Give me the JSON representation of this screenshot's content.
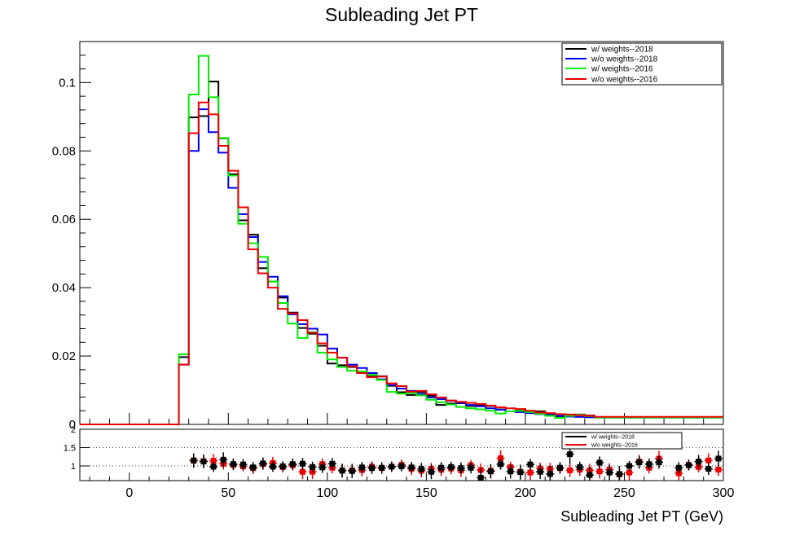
{
  "chart_data": [
    {
      "type": "line",
      "title": "Subleading Jet PT",
      "xlabel": "Subleading Jet PT (GeV)",
      "ylabel": "",
      "xlim": [
        -25,
        300
      ],
      "ylim": [
        0,
        0.112
      ],
      "yticks": [
        0,
        0.02,
        0.04,
        0.06,
        0.08,
        0.1
      ],
      "ytick_labels": [
        "0",
        "0.02",
        "0.04",
        "0.06",
        "0.08",
        "0.1"
      ],
      "x_bin_edges": [
        25,
        30,
        35,
        40,
        45,
        50,
        55,
        60,
        65,
        70,
        75,
        80,
        85,
        90,
        95,
        100,
        105,
        110,
        115,
        120,
        125,
        130,
        135,
        140,
        145,
        150,
        155,
        160,
        165,
        170,
        175,
        180,
        185,
        190,
        195,
        200,
        205,
        210,
        215,
        220,
        225,
        230,
        235,
        240,
        245,
        250,
        255,
        260,
        265,
        270,
        275,
        280,
        285,
        290,
        295,
        300
      ],
      "grid": false,
      "legend_position": "top-right",
      "series": [
        {
          "name": "w/ weights--2018",
          "color": "#000000",
          "values": [
            0.0197,
            0.0898,
            0.0902,
            0.1003,
            0.0837,
            0.0732,
            0.0597,
            0.0555,
            0.0457,
            0.0418,
            0.0371,
            0.0327,
            0.0282,
            0.0265,
            0.023,
            0.0178,
            0.0173,
            0.0168,
            0.0152,
            0.014,
            0.0141,
            0.0113,
            0.0094,
            0.0086,
            0.0095,
            0.0084,
            0.0057,
            0.0061,
            0.0062,
            0.0054,
            0.0056,
            0.0054,
            0.0044,
            0.0038,
            0.0042,
            0.0037,
            0.0038,
            0.0029,
            0.0022,
            0.0028,
            0.0029,
            0.0026,
            0.0021
          ]
        },
        {
          "name": "w/o weights--2018",
          "color": "#0000ee",
          "values": [
            0.0175,
            0.08,
            0.0922,
            0.0855,
            0.0795,
            0.0692,
            0.0615,
            0.0548,
            0.0475,
            0.0432,
            0.0375,
            0.0322,
            0.0293,
            0.028,
            0.0263,
            0.0222,
            0.0195,
            0.0175,
            0.0165,
            0.015,
            0.0132,
            0.0115,
            0.0105,
            0.0098,
            0.0089,
            0.0079,
            0.0074,
            0.0069,
            0.0063,
            0.0057,
            0.0053,
            0.0047,
            0.0043,
            0.0038,
            0.0036,
            0.0033,
            0.003,
            0.0028,
            0.0025,
            0.0023,
            0.0022,
            0.0021,
            0.002
          ]
        },
        {
          "name": "w/ weights--2016",
          "color": "#00ee00",
          "values": [
            0.0205,
            0.0965,
            0.1078,
            0.0957,
            0.0838,
            0.0728,
            0.0587,
            0.053,
            0.049,
            0.0418,
            0.0355,
            0.0295,
            0.0253,
            0.027,
            0.021,
            0.019,
            0.0168,
            0.0157,
            0.0155,
            0.0145,
            0.013,
            0.0095,
            0.009,
            0.0092,
            0.0085,
            0.0072,
            0.0065,
            0.0058,
            0.0051,
            0.0047,
            0.0044,
            0.004,
            0.0032,
            0.0038,
            0.004,
            0.0036,
            0.0031,
            0.0025,
            0.0019,
            0.0025,
            0.0029,
            0.0024,
            0.002
          ]
        },
        {
          "name": "w/o weights--2016",
          "color": "#ee0000",
          "values": [
            0.0175,
            0.0852,
            0.0942,
            0.0907,
            0.0815,
            0.0742,
            0.0635,
            0.0512,
            0.0442,
            0.04,
            0.0338,
            0.0325,
            0.0305,
            0.0268,
            0.0237,
            0.021,
            0.0195,
            0.017,
            0.015,
            0.0138,
            0.014,
            0.012,
            0.0112,
            0.0096,
            0.0098,
            0.0088,
            0.0079,
            0.007,
            0.0066,
            0.0063,
            0.006,
            0.0055,
            0.005,
            0.0047,
            0.0045,
            0.004,
            0.0035,
            0.0033,
            0.003,
            0.0029,
            0.0027,
            0.0025,
            0.0022
          ]
        }
      ]
    },
    {
      "type": "scatter",
      "title": "",
      "xlabel": "Subleading Jet PT (GeV)",
      "ylabel": "",
      "xlim": [
        -25,
        300
      ],
      "ylim": [
        0.6,
        2.0
      ],
      "xticks": [
        0,
        50,
        100,
        150,
        200,
        250,
        300
      ],
      "xtick_labels": [
        "0",
        "50",
        "100",
        "150",
        "200",
        "250",
        "300"
      ],
      "yticks": [
        1,
        1.5,
        2
      ],
      "ytick_labels": [
        "1",
        "1.5",
        "2"
      ],
      "reference_lines": [
        1,
        1.5
      ],
      "legend_position": "top-right",
      "series": [
        {
          "name": "w/ weights--2018",
          "color": "#000000",
          "x": [
            32.5,
            37.5,
            42.5,
            47.5,
            52.5,
            57.5,
            62.5,
            67.5,
            72.5,
            77.5,
            82.5,
            87.5,
            92.5,
            97.5,
            102.5,
            107.5,
            112.5,
            117.5,
            122.5,
            127.5,
            132.5,
            137.5,
            142.5,
            147.5,
            152.5,
            157.5,
            162.5,
            167.5,
            172.5,
            177.5,
            182.5,
            187.5,
            192.5,
            197.5,
            202.5,
            207.5,
            212.5,
            217.5,
            222.5,
            227.5,
            232.5,
            237.5,
            242.5,
            247.5,
            252.5,
            257.5,
            262.5,
            267.5,
            277.5,
            282.5,
            287.5,
            292.5,
            297.5
          ],
          "values": [
            1.15,
            1.12,
            0.98,
            1.17,
            1.05,
            1.04,
            0.96,
            1.07,
            0.98,
            0.99,
            1.05,
            1.06,
            0.97,
            0.96,
            1.06,
            0.87,
            0.86,
            0.96,
            0.94,
            0.95,
            0.98,
            0.99,
            0.96,
            0.92,
            0.84,
            0.95,
            0.97,
            0.94,
            0.95,
            0.68,
            0.85,
            1.05,
            0.85,
            0.83,
            1.04,
            0.84,
            0.78,
            0.95,
            1.32,
            0.97,
            0.75,
            1.09,
            0.82,
            0.78,
            1.0,
            1.1,
            1.05,
            1.1,
            0.95,
            1.02,
            1.12,
            0.92,
            1.2
          ]
        },
        {
          "name": "w/o weights--2016",
          "color": "#ee0000",
          "x": [
            32.5,
            37.5,
            42.5,
            47.5,
            52.5,
            57.5,
            62.5,
            67.5,
            72.5,
            77.5,
            82.5,
            87.5,
            92.5,
            97.5,
            102.5,
            107.5,
            112.5,
            117.5,
            122.5,
            127.5,
            132.5,
            137.5,
            142.5,
            147.5,
            152.5,
            157.5,
            162.5,
            167.5,
            172.5,
            177.5,
            182.5,
            187.5,
            192.5,
            197.5,
            202.5,
            207.5,
            212.5,
            217.5,
            222.5,
            227.5,
            232.5,
            237.5,
            242.5,
            247.5,
            252.5,
            257.5,
            262.5,
            267.5,
            277.5,
            282.5,
            287.5,
            292.5,
            297.5
          ],
          "values": [
            1.14,
            1.13,
            1.14,
            1.06,
            1.03,
            0.99,
            0.94,
            1.05,
            1.08,
            0.97,
            1.02,
            0.84,
            0.84,
            1.05,
            0.95,
            0.88,
            0.88,
            0.89,
            0.98,
            0.94,
            0.98,
            1.03,
            0.92,
            0.87,
            0.92,
            0.9,
            0.93,
            0.88,
            1.02,
            0.89,
            0.87,
            1.21,
            0.97,
            0.84,
            0.82,
            0.93,
            0.92,
            0.94,
            0.88,
            0.9,
            0.88,
            0.85,
            0.9,
            0.77,
            0.82,
            1.12,
            0.95,
            1.2,
            0.8,
            1.03,
            0.97,
            1.15,
            0.9
          ]
        }
      ]
    }
  ]
}
